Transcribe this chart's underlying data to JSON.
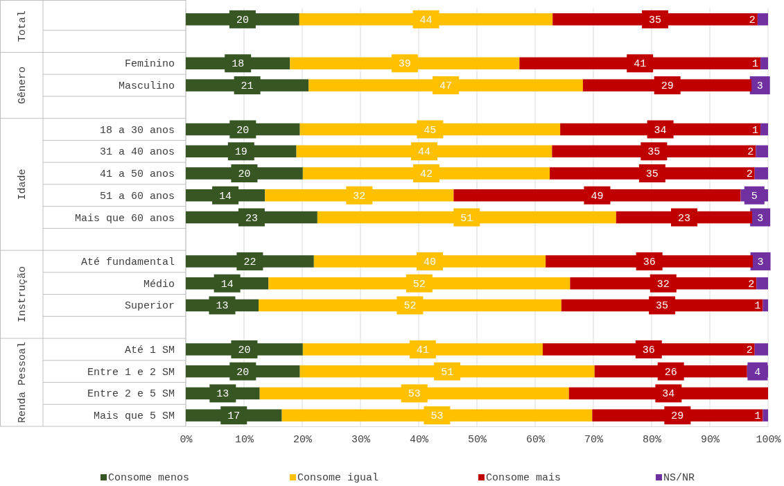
{
  "chart_data": {
    "type": "bar",
    "orientation": "horizontal",
    "stacked": true,
    "categories": [
      null,
      null,
      "Feminino",
      "Masculino",
      null,
      "18 a 30 anos",
      "31 a 40 anos",
      "41 a 50 anos",
      "51 a 60 anos",
      "Mais que 60 anos",
      null,
      "Até fundamental",
      "Médio",
      "Superior",
      null,
      "Até 1 SM",
      "Entre 1 e 2 SM",
      "Entre 2 e 5 SM",
      "Mais que 5 SM"
    ],
    "series": [
      {
        "name": "Consome menos",
        "color": "#375623",
        "values": [
          19.5,
          null,
          17.9,
          21.1,
          null,
          19.6,
          19.0,
          20.1,
          13.6,
          22.6,
          null,
          22.0,
          14.2,
          12.5,
          null,
          20.1,
          19.6,
          12.7,
          16.5
        ],
        "value_labels": [
          "20",
          null,
          "18",
          "21",
          null,
          "20",
          "19",
          "20",
          "14",
          "23",
          null,
          "22",
          "14",
          "13",
          null,
          "20",
          "20",
          "13",
          "17"
        ]
      },
      {
        "name": "Consome igual",
        "color": "#ffc000",
        "values": [
          43.5,
          null,
          39.4,
          47.1,
          null,
          44.7,
          43.9,
          42.4,
          32.4,
          51.3,
          null,
          39.8,
          51.8,
          52.0,
          null,
          41.2,
          50.6,
          53.1,
          53.3
        ],
        "value_labels": [
          "44",
          null,
          "39",
          "47",
          null,
          "45",
          "44",
          "42",
          "32",
          "51",
          null,
          "40",
          "52",
          "52",
          null,
          "41",
          "51",
          "53",
          "53"
        ]
      },
      {
        "name": "Consome mais",
        "color": "#c00000",
        "values": [
          35.2,
          null,
          41.4,
          29.0,
          null,
          34.4,
          35.0,
          35.2,
          49.3,
          23.4,
          null,
          35.6,
          32.0,
          34.6,
          null,
          36.4,
          26.2,
          34.2,
          29.3
        ],
        "value_labels": [
          "35",
          null,
          "41",
          "29",
          null,
          "34",
          "35",
          "35",
          "49",
          "23",
          null,
          "36",
          "32",
          "35",
          null,
          "36",
          "26",
          "34",
          "29"
        ]
      },
      {
        "name": "NS/NR",
        "color": "#7030a0",
        "values": [
          1.8,
          null,
          1.3,
          2.8,
          null,
          1.3,
          2.1,
          2.3,
          4.7,
          2.7,
          null,
          2.6,
          2.0,
          0.9,
          null,
          2.3,
          3.6,
          null,
          0.9
        ],
        "value_labels": [
          "2",
          null,
          "1",
          "3",
          null,
          "1",
          "2",
          "2",
          "5",
          "3",
          null,
          "3",
          "2",
          "1",
          null,
          "2",
          "4",
          null,
          "1"
        ]
      }
    ],
    "xlim": [
      0,
      100
    ],
    "xticks": [
      {
        "value": 0,
        "label": "0%"
      },
      {
        "value": 10,
        "label": "10%"
      },
      {
        "value": 20,
        "label": "20%"
      },
      {
        "value": 30,
        "label": "30%"
      },
      {
        "value": 40,
        "label": "40%"
      },
      {
        "value": 50,
        "label": "50%"
      },
      {
        "value": 60,
        "label": "60%"
      },
      {
        "value": 70,
        "label": "70%"
      },
      {
        "value": 80,
        "label": "80%"
      },
      {
        "value": 90,
        "label": "90%"
      },
      {
        "value": 100,
        "label": "100%"
      }
    ],
    "grid": "x",
    "legend": "bottom",
    "annotations": [
      "Total",
      "Gênero",
      "Idade",
      "Instrução",
      "Renda Pessoal"
    ]
  }
}
